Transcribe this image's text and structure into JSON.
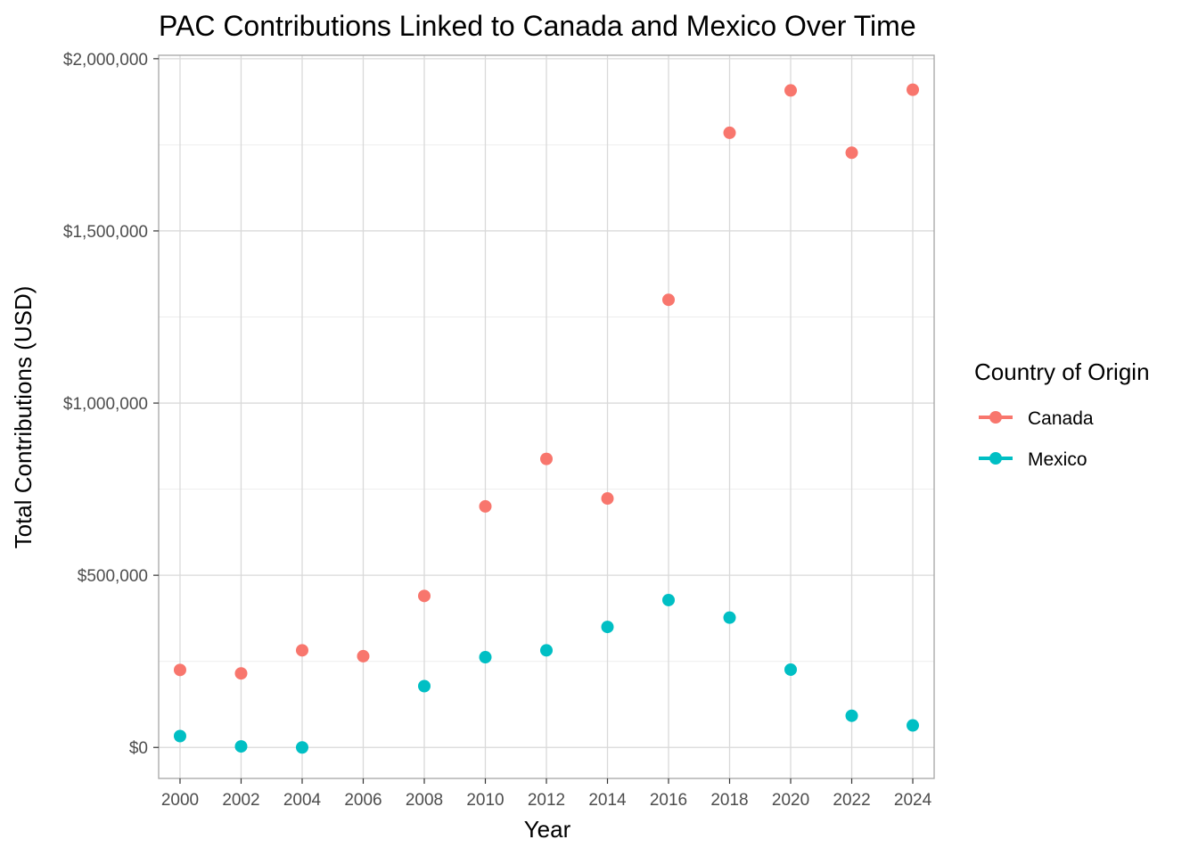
{
  "chart_data": {
    "type": "scatter",
    "title": "PAC Contributions Linked to Canada and Mexico Over Time",
    "xlabel": "Year",
    "ylabel": "Total Contributions (USD)",
    "x_ticks": [
      "2000",
      "2002",
      "2004",
      "2006",
      "2008",
      "2010",
      "2012",
      "2014",
      "2016",
      "2018",
      "2020",
      "2022",
      "2024"
    ],
    "y_ticks": [
      {
        "value": 0,
        "label": "$0"
      },
      {
        "value": 500000,
        "label": "$500,000"
      },
      {
        "value": 1000000,
        "label": "$1,000,000"
      },
      {
        "value": 1500000,
        "label": "$1,500,000"
      },
      {
        "value": 2000000,
        "label": "$2,000,000"
      }
    ],
    "xlim": [
      1999.3,
      2024.7
    ],
    "ylim": [
      -90000,
      2010000
    ],
    "grid": true,
    "legend": {
      "title": "Country of Origin",
      "position": "right"
    },
    "series": [
      {
        "name": "Canada",
        "color": "#F8766D",
        "points": [
          {
            "x": 2000,
            "y": 225000
          },
          {
            "x": 2002,
            "y": 215000
          },
          {
            "x": 2004,
            "y": 282000
          },
          {
            "x": 2006,
            "y": 265000
          },
          {
            "x": 2008,
            "y": 440000
          },
          {
            "x": 2010,
            "y": 700000
          },
          {
            "x": 2012,
            "y": 838000
          },
          {
            "x": 2014,
            "y": 723000
          },
          {
            "x": 2016,
            "y": 1300000
          },
          {
            "x": 2018,
            "y": 1785000
          },
          {
            "x": 2020,
            "y": 1908000
          },
          {
            "x": 2022,
            "y": 1727000
          },
          {
            "x": 2024,
            "y": 1910000
          }
        ]
      },
      {
        "name": "Mexico",
        "color": "#00BFC4",
        "points": [
          {
            "x": 2000,
            "y": 33000
          },
          {
            "x": 2002,
            "y": 3000
          },
          {
            "x": 2004,
            "y": 0
          },
          {
            "x": 2008,
            "y": 178000
          },
          {
            "x": 2010,
            "y": 262000
          },
          {
            "x": 2012,
            "y": 282000
          },
          {
            "x": 2014,
            "y": 350000
          },
          {
            "x": 2016,
            "y": 428000
          },
          {
            "x": 2018,
            "y": 377000
          },
          {
            "x": 2020,
            "y": 226000
          },
          {
            "x": 2022,
            "y": 92000
          },
          {
            "x": 2024,
            "y": 64000
          }
        ]
      }
    ]
  }
}
